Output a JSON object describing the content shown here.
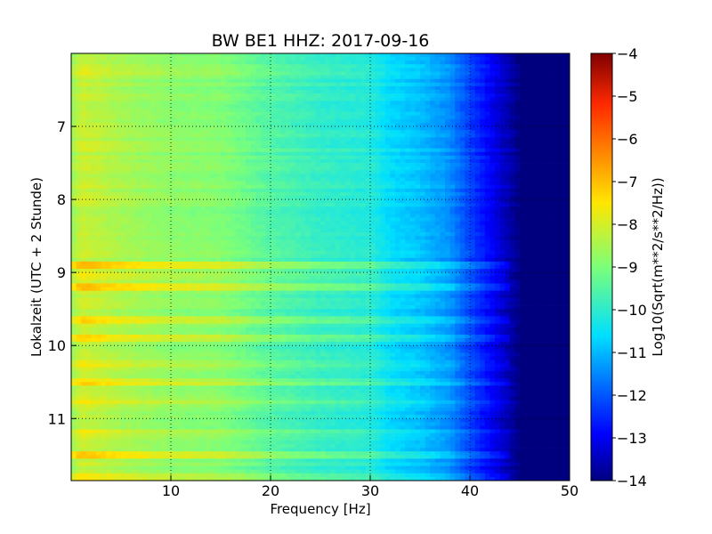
{
  "chart_data": {
    "type": "heatmap",
    "title": "BW BE1 HHZ: 2017-09-16",
    "xlabel": "Frequency [Hz]",
    "ylabel": "Lokalzeit (UTC + 2 Stunde)",
    "xlim": [
      0,
      50
    ],
    "ylim": [
      6.0,
      11.85
    ],
    "y_inverted": true,
    "x_ticks": [
      10,
      20,
      30,
      40,
      50
    ],
    "y_ticks": [
      7,
      8,
      9,
      10,
      11
    ],
    "grid": true,
    "colormap": "jet",
    "colorbar": {
      "label": "Log10(Sqrt(m**2/s**2/Hz))",
      "range": [
        -14,
        -4
      ],
      "ticks": [
        -4,
        -5,
        -6,
        -7,
        -8,
        -9,
        -10,
        -11,
        -12,
        -13,
        -14
      ],
      "position": "right"
    },
    "frequency_profile": [
      {
        "frequency_hz": 0,
        "value": -8.7
      },
      {
        "frequency_hz": 1,
        "value": -8.1
      },
      {
        "frequency_hz": 2,
        "value": -8.2
      },
      {
        "frequency_hz": 5,
        "value": -8.5
      },
      {
        "frequency_hz": 10,
        "value": -8.8
      },
      {
        "frequency_hz": 15,
        "value": -8.9
      },
      {
        "frequency_hz": 20,
        "value": -9.5
      },
      {
        "frequency_hz": 25,
        "value": -9.9
      },
      {
        "frequency_hz": 30,
        "value": -10.1
      },
      {
        "frequency_hz": 32,
        "value": -10.6
      },
      {
        "frequency_hz": 35,
        "value": -10.9
      },
      {
        "frequency_hz": 38,
        "value": -11.4
      },
      {
        "frequency_hz": 40,
        "value": -12.2
      },
      {
        "frequency_hz": 42,
        "value": -12.9
      },
      {
        "frequency_hz": 44,
        "value": -13.6
      },
      {
        "frequency_hz": 45,
        "value": -14.0
      },
      {
        "frequency_hz": 50,
        "value": -14.0
      }
    ],
    "time_bands": [
      {
        "time_h": 6.25,
        "offset": 0.2,
        "max_frequency_hz": 28
      },
      {
        "time_h": 7.0,
        "offset": 0.2,
        "max_frequency_hz": 22
      },
      {
        "time_h": 7.25,
        "offset": 0.35,
        "max_frequency_hz": 20
      },
      {
        "time_h": 8.0,
        "offset": 0.25,
        "max_frequency_hz": 18
      },
      {
        "time_h": 8.9,
        "offset": 1.2,
        "max_frequency_hz": 44
      },
      {
        "time_h": 9.05,
        "offset": 0.6,
        "max_frequency_hz": 44
      },
      {
        "time_h": 9.2,
        "offset": 1.0,
        "max_frequency_hz": 44
      },
      {
        "time_h": 9.65,
        "offset": 0.8,
        "max_frequency_hz": 44
      },
      {
        "time_h": 9.9,
        "offset": 0.8,
        "max_frequency_hz": 44
      },
      {
        "time_h": 10.25,
        "offset": 0.5,
        "max_frequency_hz": 44
      },
      {
        "time_h": 10.5,
        "offset": 0.8,
        "max_frequency_hz": 44
      },
      {
        "time_h": 10.75,
        "offset": 0.45,
        "max_frequency_hz": 44
      },
      {
        "time_h": 11.2,
        "offset": 0.35,
        "max_frequency_hz": 44
      },
      {
        "time_h": 11.5,
        "offset": 1.1,
        "max_frequency_hz": 44
      },
      {
        "time_h": 11.8,
        "offset": 0.6,
        "max_frequency_hz": 44
      }
    ]
  }
}
